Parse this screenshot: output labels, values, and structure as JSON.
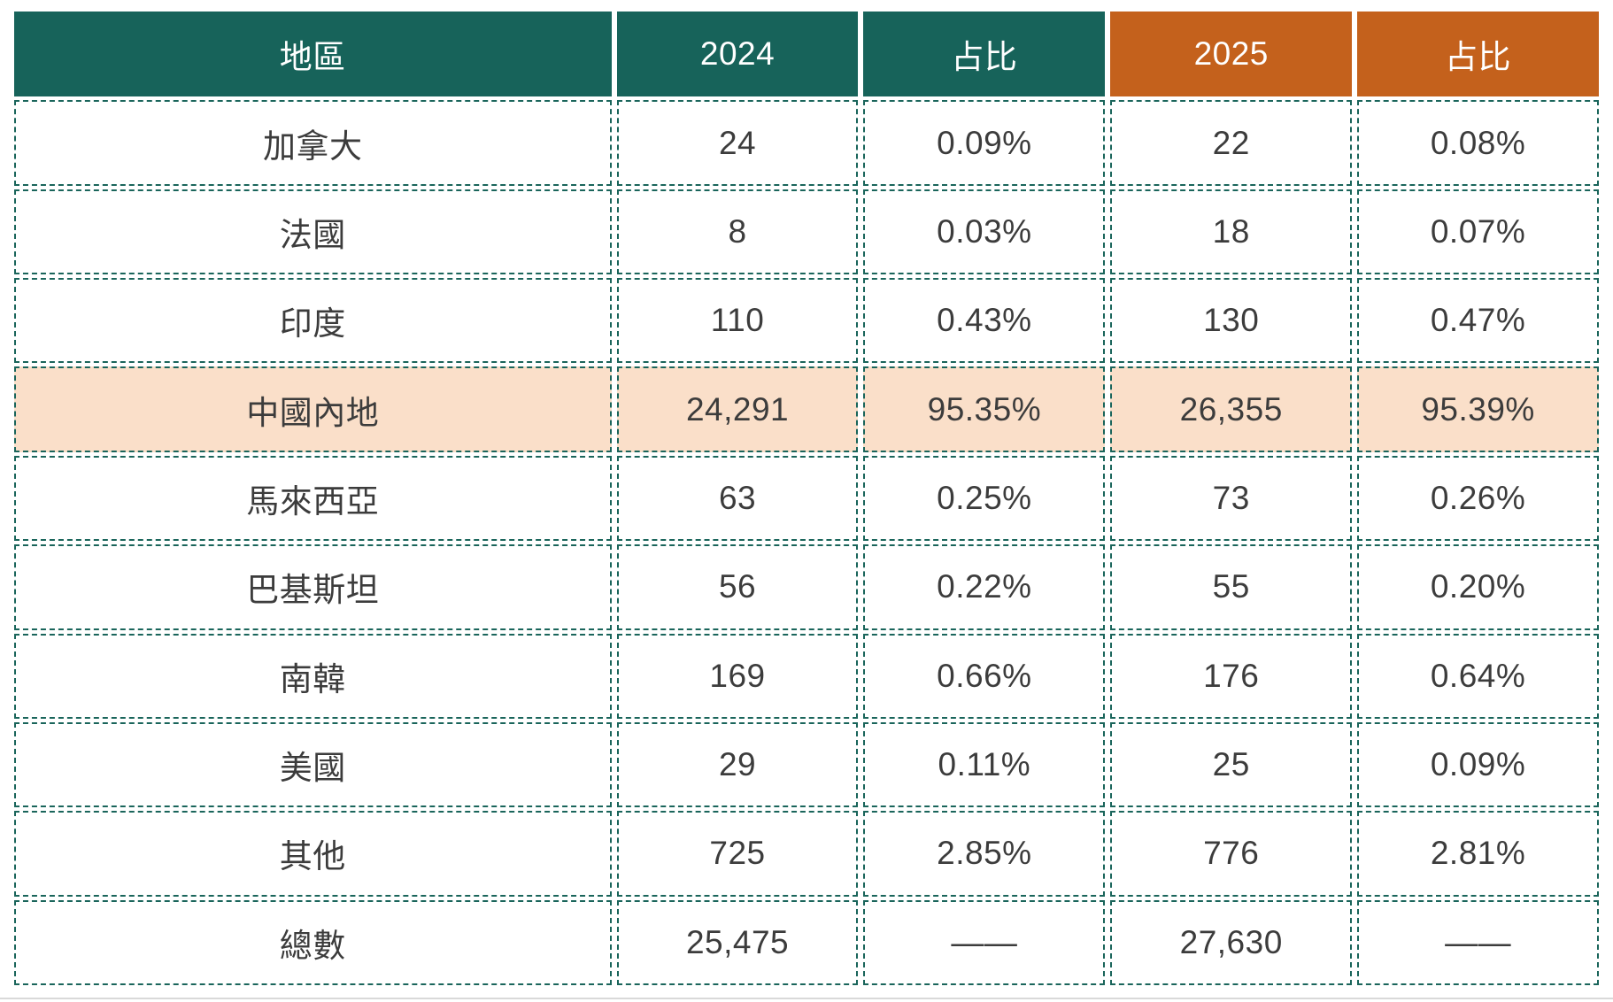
{
  "colors": {
    "teal": "#17635A",
    "orange": "#C4611C",
    "peach": "#FADFC9",
    "border": "#1A655B",
    "text": "#3C3C3C",
    "divider": "#D9D9D9"
  },
  "chart_data": {
    "type": "table",
    "columns": [
      "地區",
      "2024",
      "占比",
      "2025",
      "占比"
    ],
    "rows": [
      [
        "加拿大",
        "24",
        "0.09%",
        "22",
        "0.08%"
      ],
      [
        "法國",
        "8",
        "0.03%",
        "18",
        "0.07%"
      ],
      [
        "印度",
        "110",
        "0.43%",
        "130",
        "0.47%"
      ],
      [
        "中國內地",
        "24,291",
        "95.35%",
        "26,355",
        "95.39%"
      ],
      [
        "馬來西亞",
        "63",
        "0.25%",
        "73",
        "0.26%"
      ],
      [
        "巴基斯坦",
        "56",
        "0.22%",
        "55",
        "0.20%"
      ],
      [
        "南韓",
        "169",
        "0.66%",
        "176",
        "0.64%"
      ],
      [
        "美國",
        "29",
        "0.11%",
        "25",
        "0.09%"
      ],
      [
        "其他",
        "725",
        "2.85%",
        "776",
        "2.81%"
      ],
      [
        "總數",
        "25,475",
        "——",
        "27,630",
        "——"
      ]
    ],
    "highlighted_row": "中國內地",
    "notes": "header columns 1-3 teal, columns 4-5 orange; 中國內地 row highlighted peach; 總數 percent cells show a long dash"
  }
}
